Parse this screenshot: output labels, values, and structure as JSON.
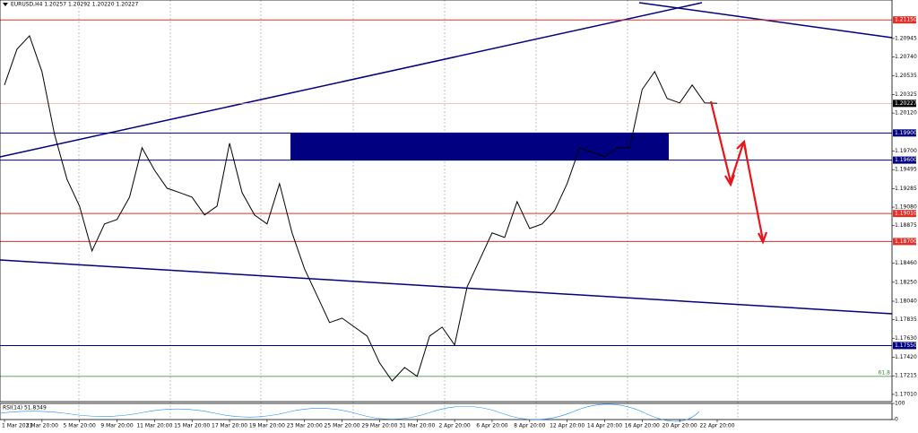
{
  "chart_data": {
    "type": "line",
    "title": "EURUSD,H4  1.20257 1.20292 1.20220 1.20227",
    "color": "#000000",
    "categories": [
      "1 Mar 2021",
      null,
      null,
      "3 Mar 20:00",
      null,
      null,
      "5 Mar 20:00",
      null,
      null,
      "9 Mar 20:00",
      null,
      null,
      "11 Mar 20:00",
      null,
      null,
      "15 Mar 20:00",
      null,
      null,
      "17 Mar 20:00",
      null,
      null,
      "19 Mar 20:00",
      null,
      null,
      "23 Mar 20:00",
      null,
      null,
      "25 Mar 20:00",
      null,
      null,
      "29 Mar 20:00",
      null,
      null,
      "31 Mar 20:00",
      null,
      null,
      "2 Apr 20:00",
      null,
      null,
      "6 Apr 20:00",
      null,
      null,
      "8 Apr 20:00",
      null,
      null,
      "12 Apr 20:00",
      null,
      null,
      "14 Apr 20:00",
      null,
      null,
      "16 Apr 20:00",
      null,
      null,
      "20 Apr 20:00",
      null,
      null,
      "22 Apr 20:00"
    ],
    "values": [
      1.2043,
      1.20826,
      1.20975,
      1.20578,
      1.19885,
      1.19389,
      1.19092,
      1.18596,
      1.18894,
      1.18943,
      1.19191,
      1.19736,
      1.19488,
      1.1929,
      1.19241,
      1.19191,
      1.18993,
      1.19092,
      1.19786,
      1.19241,
      1.18993,
      1.18894,
      1.1934,
      1.18795,
      1.18398,
      1.18101,
      1.17804,
      1.17853,
      1.17754,
      1.17655,
      1.17358,
      1.17159,
      1.17308,
      1.17209,
      1.17655,
      1.17754,
      1.17556,
      1.182,
      1.18497,
      1.18795,
      1.18745,
      1.19141,
      1.18844,
      1.18894,
      1.19042,
      1.1934,
      1.19736,
      1.19686,
      1.19637,
      1.19736,
      1.19736,
      1.2038,
      1.20578,
      1.20281,
      1.20232,
      1.2043,
      1.20232,
      1.20227
    ],
    "ylim": [
      1.1693,
      1.2137
    ],
    "yticks": [
      1.20945,
      {
        "value": 1.2074,
        "label": "1.20740"
      },
      1.20535,
      1.20325,
      {
        "value": 1.2012,
        "label": "1.20120"
      },
      {
        "value": 1.197,
        "label": "1.19700"
      },
      1.19495,
      1.19285,
      {
        "value": 1.1908,
        "label": "1.19080"
      },
      1.18875,
      {
        "value": 1.1846,
        "label": "1.18460"
      },
      {
        "value": 1.1825,
        "label": "1.18250"
      },
      {
        "value": 1.1804,
        "label": "1.18040"
      },
      1.17835,
      {
        "value": 1.1763,
        "label": "1.17630"
      },
      {
        "value": 1.1742,
        "label": "1.17420"
      },
      1.17215,
      {
        "value": 1.1701,
        "label": "1.17010"
      }
    ],
    "levels": [
      {
        "value": 1.2115,
        "label": "1.21150",
        "color": "#e0302a"
      },
      {
        "value": 1.20227,
        "label": "1.20227",
        "color": "#000000"
      },
      {
        "value": 1.199,
        "label": "1.19900",
        "color": "#000080"
      },
      {
        "value": 1.196,
        "label": "1.19600",
        "color": "#000080"
      },
      {
        "value": 1.1901,
        "label": "1.19010",
        "color": "#e0302a"
      },
      {
        "value": 1.187,
        "label": "1.18700",
        "color": "#e0302a"
      },
      {
        "value": 1.1755,
        "label": "1.17550",
        "color": "#000080"
      }
    ],
    "fib_level": {
      "value": 1.17209,
      "label": "61.8",
      "color": "#2e8b2e"
    },
    "rsi": {
      "label": "RSI(14) 51.8349",
      "yticks": [
        100,
        0
      ]
    }
  }
}
